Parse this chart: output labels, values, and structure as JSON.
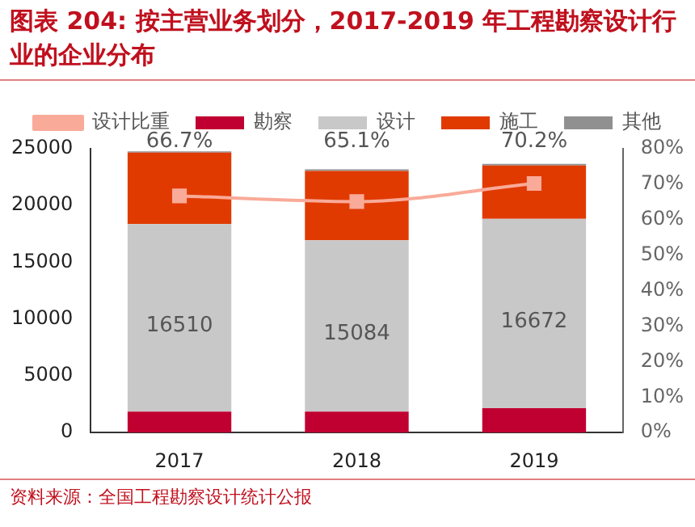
{
  "chart_data": {
    "type": "bar",
    "title": "图表 204: 按主营业务划分，2017-2019 年工程勘察设计行业的企业分布",
    "categories": [
      "2017",
      "2018",
      "2019"
    ],
    "stacked": true,
    "series": [
      {
        "name": "勘察",
        "color": "#c00030",
        "values": [
          1850,
          1850,
          2150
        ]
      },
      {
        "name": "设计",
        "color": "#c8c8c8",
        "values": [
          16510,
          15084,
          16672
        ],
        "value_labels": [
          "16510",
          "15084",
          "16672"
        ]
      },
      {
        "name": "施工",
        "color": "#e03a00",
        "values": [
          6300,
          6100,
          4700
        ]
      },
      {
        "name": "其他",
        "color": "#909090",
        "values": [
          100,
          150,
          150
        ]
      },
      {
        "name": "设计比重",
        "type": "line",
        "axis": "y2",
        "color": "#f9aa99",
        "marker": "square",
        "values": [
          66.7,
          65.1,
          70.2
        ],
        "value_labels": [
          "66.7%",
          "65.1%",
          "70.2%"
        ]
      }
    ],
    "ylim": [
      0,
      25000
    ],
    "yticks": [
      0,
      5000,
      10000,
      15000,
      20000,
      25000
    ],
    "y2lim": [
      0,
      80
    ],
    "y2ticks": [
      {
        "value": 0,
        "label": "0%"
      },
      {
        "value": 10,
        "label": "10%"
      },
      {
        "value": 20,
        "label": "20%"
      },
      {
        "value": 30,
        "label": "30%"
      },
      {
        "value": 40,
        "label": "40%"
      },
      {
        "value": 50,
        "label": "50%"
      },
      {
        "value": 60,
        "label": "60%"
      },
      {
        "value": 70,
        "label": "70%"
      },
      {
        "value": 80,
        "label": "80%"
      }
    ],
    "grid": false,
    "legend": "top",
    "annotations": [
      "资料来源：全国工程勘察设计统计公报"
    ]
  }
}
